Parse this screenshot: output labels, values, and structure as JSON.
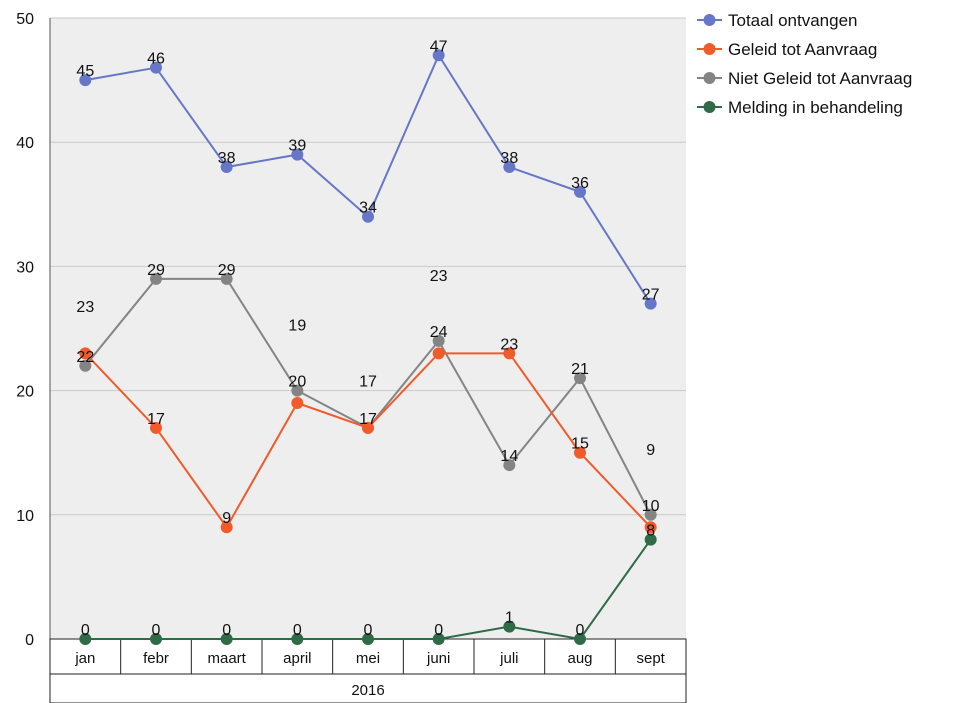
{
  "chart_data": {
    "type": "line",
    "title": "",
    "xlabel": "",
    "ylabel": "",
    "year_label": "2016",
    "categories": [
      "jan",
      "febr",
      "maart",
      "april",
      "mei",
      "juni",
      "juli",
      "aug",
      "sept"
    ],
    "ylim": [
      0,
      50
    ],
    "yticks": [
      "0",
      "10",
      "20",
      "30",
      "40",
      "50"
    ],
    "grid": true,
    "legend_position": "top-right",
    "series": [
      {
        "name": "Totaal ontvangen",
        "color": "#6677c7",
        "values": [
          45,
          46,
          38,
          39,
          34,
          47,
          38,
          36,
          27
        ]
      },
      {
        "name": "Geleid tot Aanvraag",
        "color": "#f05b2c",
        "values": [
          23,
          17,
          9,
          19,
          17,
          23,
          23,
          15,
          9
        ]
      },
      {
        "name": "Niet Geleid tot Aanvraag",
        "color": "#848484",
        "values": [
          22,
          29,
          29,
          20,
          17,
          24,
          14,
          21,
          10
        ]
      },
      {
        "name": "Melding in behandeling",
        "color": "#2f6b47",
        "values": [
          0,
          0,
          0,
          0,
          0,
          0,
          1,
          0,
          8
        ]
      }
    ],
    "annotations": [
      {
        "label": "45",
        "x": "jan",
        "y": 45
      },
      {
        "label": "46",
        "x": "febr",
        "y": 46
      },
      {
        "label": "38",
        "x": "maart",
        "y": 38
      },
      {
        "label": "39",
        "x": "april",
        "y": 39
      },
      {
        "label": "34",
        "x": "mei",
        "y": 34
      },
      {
        "label": "47",
        "x": "juni",
        "y": 47
      },
      {
        "label": "38",
        "x": "juli",
        "y": 38
      },
      {
        "label": "36",
        "x": "aug",
        "y": 36
      },
      {
        "label": "27",
        "x": "sept",
        "y": 27
      },
      {
        "label": "23",
        "x": "jan",
        "y": 26
      },
      {
        "label": "22",
        "x": "jan",
        "y": 22
      },
      {
        "label": "17",
        "x": "febr",
        "y": 17
      },
      {
        "label": "9",
        "x": "maart",
        "y": 9
      },
      {
        "label": "19",
        "x": "april",
        "y": 24.5
      },
      {
        "label": "17",
        "x": "mei",
        "y": 20
      },
      {
        "label": "23",
        "x": "juni",
        "y": 28.5
      },
      {
        "label": "23",
        "x": "juli",
        "y": 23
      },
      {
        "label": "15",
        "x": "aug",
        "y": 15
      },
      {
        "label": "9",
        "x": "sept",
        "y": 14.5
      },
      {
        "label": "29",
        "x": "febr",
        "y": 29
      },
      {
        "label": "29",
        "x": "maart",
        "y": 29
      },
      {
        "label": "20",
        "x": "april",
        "y": 20
      },
      {
        "label": "17",
        "x": "mei",
        "y": 17
      },
      {
        "label": "24",
        "x": "juni",
        "y": 24
      },
      {
        "label": "14",
        "x": "juli",
        "y": 14
      },
      {
        "label": "21",
        "x": "aug",
        "y": 21
      },
      {
        "label": "10",
        "x": "sept",
        "y": 10
      },
      {
        "label": "0",
        "x": "jan",
        "y": 0
      },
      {
        "label": "0",
        "x": "febr",
        "y": 0
      },
      {
        "label": "0",
        "x": "maart",
        "y": 0
      },
      {
        "label": "0",
        "x": "april",
        "y": 0
      },
      {
        "label": "0",
        "x": "mei",
        "y": 0
      },
      {
        "label": "0",
        "x": "juni",
        "y": 0
      },
      {
        "label": "1",
        "x": "juli",
        "y": 1
      },
      {
        "label": "0",
        "x": "aug",
        "y": 0
      },
      {
        "label": "8",
        "x": "sept",
        "y": 8
      }
    ]
  }
}
